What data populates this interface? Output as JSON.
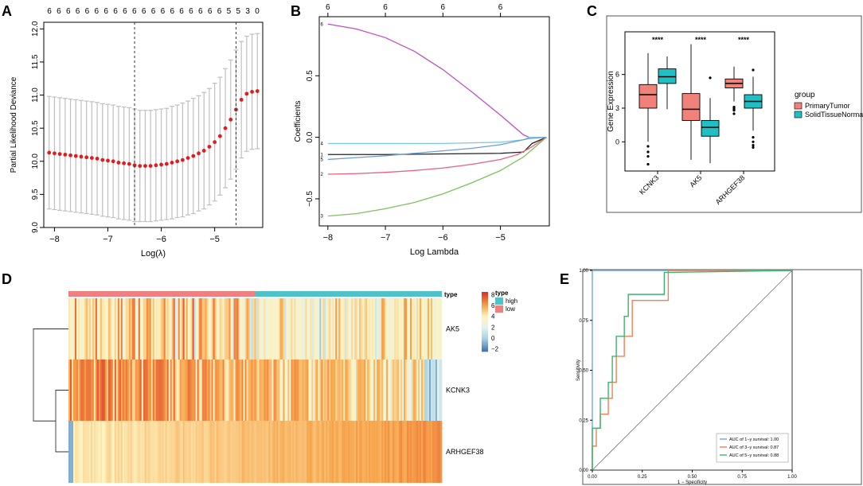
{
  "colors": {
    "point": "#E41A1C",
    "errorbar": "#BFBFBF",
    "vline": "#333333",
    "pathMagenta": "#C050C0",
    "pathCyan": "#7FC8E8",
    "pathBlack": "#222222",
    "pathBlue": "#6A9FD8",
    "pathPink": "#E8607A",
    "pathGreen": "#7FC060",
    "primary": "#F0827A",
    "normal": "#1FBFC4",
    "rocBlue": "#6FA8DC",
    "rocOrange": "#F08050",
    "rocGreen": "#3CB371",
    "heatLow": "#3B70B0",
    "heatMid": "#FCF3C0",
    "heatHigh": "#D73027",
    "typeHigh": "#4FC1C9",
    "typeLow": "#F08080"
  },
  "panels": {
    "A": "A",
    "B": "B",
    "C": "C",
    "D": "D",
    "E": "E"
  },
  "chart_data": [
    {
      "id": "A",
      "type": "scatter",
      "title": "",
      "xlabel": "Log(λ)",
      "ylabel": "Partial Likelihood Deviance",
      "xlim": [
        -8.2,
        -4.1
      ],
      "ylim": [
        9.0,
        12.1
      ],
      "xticks": [
        -8,
        -7,
        -6,
        -5
      ],
      "xtick_labels": [
        "−8",
        "−7",
        "−6",
        "−5"
      ],
      "yticks": [
        9.0,
        9.5,
        10.0,
        10.5,
        11.0,
        11.5,
        12.0
      ],
      "ytick_labels": [
        "9.0",
        "9.5",
        "10.0",
        "10.5",
        "11.0",
        "11.5",
        "12.0"
      ],
      "top_labels": [
        "6",
        "6",
        "6",
        "6",
        "6",
        "6",
        "6",
        "6",
        "6",
        "6",
        "6",
        "6",
        "6",
        "6",
        "6",
        "6",
        "6",
        "6",
        "6",
        "5",
        "5",
        "3",
        "0"
      ],
      "vlines": [
        -6.5,
        -4.6
      ],
      "x": [
        -8.1,
        -8.0,
        -7.9,
        -7.8,
        -7.7,
        -7.6,
        -7.5,
        -7.4,
        -7.3,
        -7.2,
        -7.1,
        -7.0,
        -6.9,
        -6.8,
        -6.7,
        -6.6,
        -6.5,
        -6.4,
        -6.3,
        -6.2,
        -6.1,
        -6.0,
        -5.9,
        -5.8,
        -5.7,
        -5.6,
        -5.5,
        -5.4,
        -5.3,
        -5.2,
        -5.1,
        -5.0,
        -4.9,
        -4.8,
        -4.7,
        -4.6,
        -4.5,
        -4.4,
        -4.3,
        -4.2
      ],
      "y": [
        10.13,
        10.12,
        10.11,
        10.1,
        10.09,
        10.08,
        10.07,
        10.06,
        10.05,
        10.04,
        10.02,
        10.01,
        10.0,
        9.98,
        9.97,
        9.96,
        9.94,
        9.93,
        9.93,
        9.93,
        9.94,
        9.95,
        9.96,
        9.98,
        10.0,
        10.02,
        10.05,
        10.08,
        10.12,
        10.16,
        10.22,
        10.29,
        10.38,
        10.5,
        10.63,
        10.78,
        10.93,
        11.02,
        11.05,
        11.06
      ],
      "err": [
        0.85,
        0.85,
        0.85,
        0.85,
        0.85,
        0.85,
        0.85,
        0.85,
        0.85,
        0.85,
        0.85,
        0.85,
        0.85,
        0.85,
        0.85,
        0.85,
        0.85,
        0.84,
        0.84,
        0.84,
        0.84,
        0.84,
        0.84,
        0.85,
        0.85,
        0.86,
        0.86,
        0.87,
        0.87,
        0.88,
        0.88,
        0.89,
        0.89,
        0.9,
        0.9,
        0.9,
        0.88,
        0.87,
        0.87,
        0.87
      ]
    },
    {
      "id": "B",
      "type": "line",
      "xlabel": "Log Lambda",
      "ylabel": "Coefficients",
      "xlim": [
        -8.15,
        -4.15
      ],
      "ylim": [
        -0.72,
        0.98
      ],
      "xticks": [
        -8,
        -7,
        -6,
        -5
      ],
      "xtick_labels": [
        "−8",
        "−7",
        "−6",
        "−5"
      ],
      "yticks": [
        -0.5,
        0.0,
        0.5
      ],
      "ytick_labels": [
        "−0.5",
        "0.0",
        "0.5"
      ],
      "top_ticks": [
        -8,
        -7,
        -6,
        -5
      ],
      "top_labels": [
        "6",
        "6",
        "6",
        "6"
      ],
      "series": [
        {
          "name": "6",
          "color_key": "pathMagenta",
          "points": [
            [
              -8.0,
              0.92
            ],
            [
              -7.5,
              0.88
            ],
            [
              -7.0,
              0.81
            ],
            [
              -6.5,
              0.7
            ],
            [
              -6.0,
              0.55
            ],
            [
              -5.5,
              0.37
            ],
            [
              -5.0,
              0.18
            ],
            [
              -4.6,
              0.02
            ],
            [
              -4.5,
              0.0
            ],
            [
              -4.2,
              0.0
            ]
          ]
        },
        {
          "name": "4",
          "color_key": "pathCyan",
          "points": [
            [
              -8.0,
              -0.05
            ],
            [
              -7.0,
              -0.05
            ],
            [
              -6.0,
              -0.05
            ],
            [
              -5.0,
              -0.04
            ],
            [
              -4.6,
              -0.02
            ],
            [
              -4.5,
              0.0
            ],
            [
              -4.2,
              0.0
            ]
          ]
        },
        {
          "name": "1",
          "color_key": "pathBlack",
          "points": [
            [
              -8.0,
              -0.14
            ],
            [
              -7.0,
              -0.14
            ],
            [
              -6.0,
              -0.135
            ],
            [
              -5.0,
              -0.13
            ],
            [
              -4.6,
              -0.12
            ],
            [
              -4.45,
              -0.05
            ],
            [
              -4.2,
              0.0
            ]
          ]
        },
        {
          "name": "5",
          "color_key": "pathBlue",
          "points": [
            [
              -8.0,
              -0.18
            ],
            [
              -7.5,
              -0.165
            ],
            [
              -7.0,
              -0.15
            ],
            [
              -6.5,
              -0.13
            ],
            [
              -6.0,
              -0.11
            ],
            [
              -5.5,
              -0.09
            ],
            [
              -5.0,
              -0.06
            ],
            [
              -4.7,
              -0.03
            ],
            [
              -4.5,
              -0.01
            ],
            [
              -4.2,
              0.0
            ]
          ]
        },
        {
          "name": "2",
          "color_key": "pathPink",
          "points": [
            [
              -8.0,
              -0.3
            ],
            [
              -7.5,
              -0.295
            ],
            [
              -7.0,
              -0.285
            ],
            [
              -6.5,
              -0.27
            ],
            [
              -6.0,
              -0.25
            ],
            [
              -5.5,
              -0.22
            ],
            [
              -5.0,
              -0.18
            ],
            [
              -4.7,
              -0.14
            ],
            [
              -4.5,
              -0.09
            ],
            [
              -4.3,
              -0.03
            ],
            [
              -4.2,
              0.0
            ]
          ]
        },
        {
          "name": "3",
          "color_key": "pathGreen",
          "points": [
            [
              -8.0,
              -0.64
            ],
            [
              -7.5,
              -0.62
            ],
            [
              -7.0,
              -0.58
            ],
            [
              -6.5,
              -0.53
            ],
            [
              -6.0,
              -0.46
            ],
            [
              -5.5,
              -0.37
            ],
            [
              -5.0,
              -0.27
            ],
            [
              -4.6,
              -0.16
            ],
            [
              -4.4,
              -0.08
            ],
            [
              -4.2,
              0.0
            ]
          ]
        }
      ]
    },
    {
      "id": "C",
      "type": "box",
      "ylabel": "Gene Expression",
      "ylim": [
        -2.6,
        9.8
      ],
      "yticks": [
        0,
        3,
        6
      ],
      "ytick_labels": [
        "0",
        "3",
        "6"
      ],
      "categories": [
        "KCNK3",
        "AK5",
        "ARHGEF38"
      ],
      "significance": [
        "****",
        "****",
        "****"
      ],
      "legend_title": "group",
      "legend": [
        "PrimaryTumor",
        "SolidTissueNormal"
      ],
      "series": [
        {
          "name": "PrimaryTumor",
          "color_key": "primary",
          "boxes": [
            {
              "q1": 3.0,
              "median": 4.2,
              "q3": 5.1,
              "low": 0.0,
              "high": 7.9,
              "outliers": [
                -0.4,
                -0.9,
                -1.3,
                -2.0
              ]
            },
            {
              "q1": 1.9,
              "median": 2.9,
              "q3": 4.3,
              "low": -1.6,
              "high": 8.7,
              "outliers": []
            },
            {
              "q1": 4.8,
              "median": 5.2,
              "q3": 5.6,
              "low": 3.6,
              "high": 6.7,
              "outliers": [
                3.1,
                2.9,
                3.0,
                2.5,
                2.8
              ]
            }
          ]
        },
        {
          "name": "SolidTissueNormal",
          "color_key": "normal",
          "boxes": [
            {
              "q1": 5.2,
              "median": 5.8,
              "q3": 6.5,
              "low": 2.9,
              "high": 7.6,
              "outliers": []
            },
            {
              "q1": 0.5,
              "median": 1.3,
              "q3": 1.9,
              "low": -1.9,
              "high": 3.9,
              "outliers": [
                5.7
              ]
            },
            {
              "q1": 3.0,
              "median": 3.6,
              "q3": 4.2,
              "low": 1.0,
              "high": 5.8,
              "outliers": [
                6.4,
                0.4,
                0.0,
                -0.3,
                -0.5
              ]
            }
          ]
        }
      ]
    },
    {
      "id": "D",
      "type": "heatmap",
      "rows": [
        "AK5",
        "KCNK3",
        "ARHGEF38"
      ],
      "annotation_label": "type",
      "annotation_groups": [
        {
          "name": "high",
          "fraction": 0.5
        },
        {
          "name": "low",
          "fraction": 0.5
        }
      ],
      "legend_title": "type",
      "legend_entries": [
        "high",
        "low"
      ],
      "colorbar_ticks": [
        8,
        6,
        4,
        2,
        0,
        -2
      ],
      "colorbar_labels": [
        "8",
        "6",
        "4",
        "2",
        "0",
        "−2"
      ],
      "colorbar_range": [
        -2.5,
        8.5
      ]
    },
    {
      "id": "E",
      "type": "line",
      "xlabel": "1 − Specificity",
      "ylabel": "Sensitivity",
      "xlim": [
        0,
        1
      ],
      "ylim": [
        0,
        1
      ],
      "xticks": [
        0,
        0.25,
        0.5,
        0.75,
        1.0
      ],
      "xtick_labels": [
        "0.00",
        "0.25",
        "0.50",
        "0.75",
        "1.00"
      ],
      "yticks": [
        0,
        0.25,
        0.5,
        0.75,
        1.0
      ],
      "ytick_labels": [
        "0.00",
        "0.25",
        "0.50",
        "0.75",
        "1.00"
      ],
      "series": [
        {
          "name": "AUC of 1−y survival: 1.00",
          "color_key": "rocBlue",
          "points": [
            [
              0,
              0
            ],
            [
              0,
              1.0
            ],
            [
              1,
              1.0
            ]
          ]
        },
        {
          "name": "AUC of 3−y survival: 0.87",
          "color_key": "rocOrange",
          "points": [
            [
              0,
              0
            ],
            [
              0,
              0.12
            ],
            [
              0.02,
              0.12
            ],
            [
              0.02,
              0.21
            ],
            [
              0.04,
              0.21
            ],
            [
              0.04,
              0.28
            ],
            [
              0.08,
              0.28
            ],
            [
              0.08,
              0.36
            ],
            [
              0.1,
              0.36
            ],
            [
              0.1,
              0.44
            ],
            [
              0.12,
              0.44
            ],
            [
              0.12,
              0.57
            ],
            [
              0.16,
              0.57
            ],
            [
              0.16,
              0.67
            ],
            [
              0.2,
              0.67
            ],
            [
              0.2,
              0.85
            ],
            [
              0.38,
              0.85
            ],
            [
              0.38,
              1.0
            ],
            [
              1,
              1.0
            ]
          ]
        },
        {
          "name": "AUC of 5−y survival: 0.88",
          "color_key": "rocGreen",
          "points": [
            [
              0,
              0
            ],
            [
              0,
              0.21
            ],
            [
              0.04,
              0.21
            ],
            [
              0.04,
              0.36
            ],
            [
              0.08,
              0.36
            ],
            [
              0.08,
              0.44
            ],
            [
              0.1,
              0.44
            ],
            [
              0.1,
              0.57
            ],
            [
              0.12,
              0.57
            ],
            [
              0.12,
              0.67
            ],
            [
              0.16,
              0.67
            ],
            [
              0.16,
              0.77
            ],
            [
              0.18,
              0.77
            ],
            [
              0.18,
              0.88
            ],
            [
              0.36,
              0.88
            ],
            [
              0.36,
              0.99
            ],
            [
              1,
              1.0
            ]
          ]
        }
      ]
    }
  ]
}
